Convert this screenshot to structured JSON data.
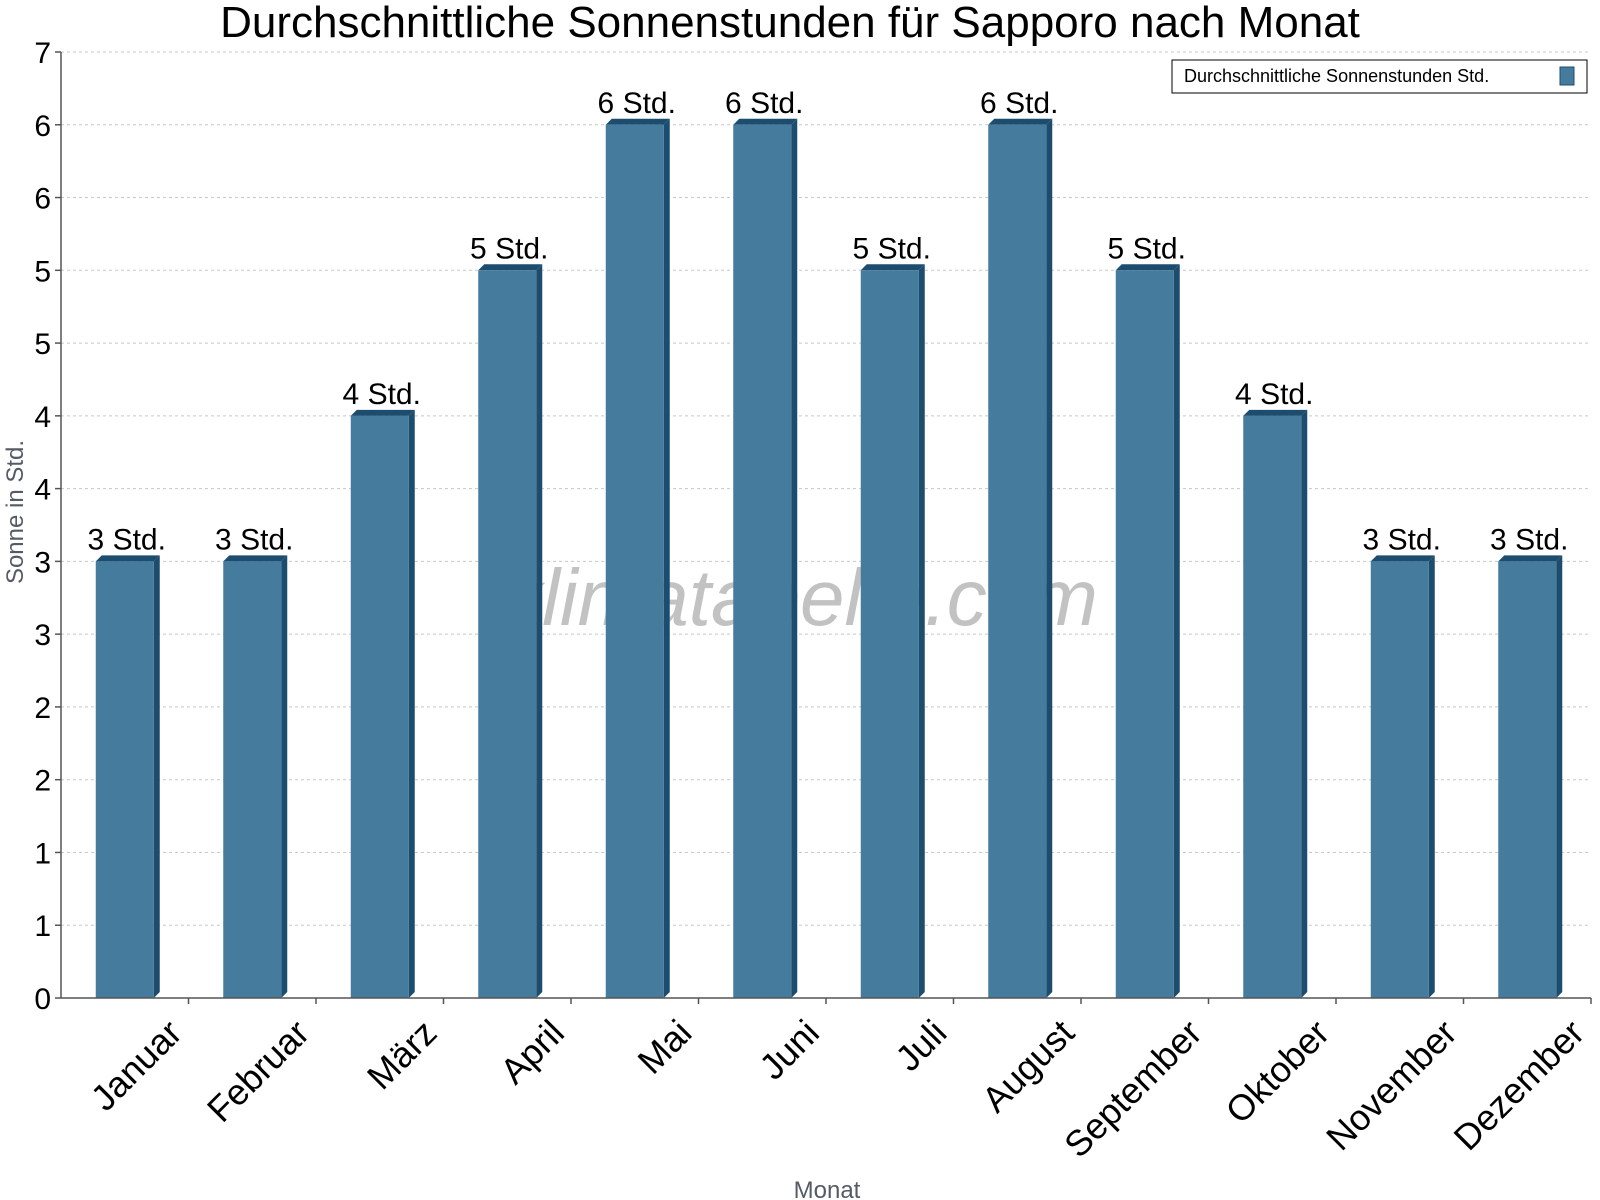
{
  "chart_data": {
    "type": "bar",
    "title": "Durchschnittliche Sonnenstunden für Sapporo nach Monat",
    "xlabel": "Monat",
    "ylabel": "Sonne in Std.",
    "categories": [
      "Januar",
      "Februar",
      "März",
      "April",
      "Mai",
      "Juni",
      "Juli",
      "August",
      "September",
      "Oktober",
      "November",
      "Dezember"
    ],
    "series": [
      {
        "name": "Durchschnittliche Sonnenstunden Std.",
        "values": [
          3,
          3,
          4,
          5,
          6,
          6,
          5,
          6,
          5,
          4,
          3,
          3
        ],
        "labels": [
          "3 Std.",
          "3 Std.",
          "4 Std.",
          "5 Std.",
          "6 Std.",
          "6 Std.",
          "5 Std.",
          "6 Std.",
          "5 Std.",
          "4 Std.",
          "3 Std.",
          "3 Std."
        ]
      }
    ],
    "ylim": [
      0,
      6.5
    ],
    "yticks": [
      {
        "value": 0,
        "label": "0"
      },
      {
        "value": 0.5,
        "label": "1"
      },
      {
        "value": 1,
        "label": "1"
      },
      {
        "value": 1.5,
        "label": "2"
      },
      {
        "value": 2,
        "label": "2"
      },
      {
        "value": 2.5,
        "label": "3"
      },
      {
        "value": 3,
        "label": "3"
      },
      {
        "value": 3.5,
        "label": "4"
      },
      {
        "value": 4,
        "label": "4"
      },
      {
        "value": 4.5,
        "label": "5"
      },
      {
        "value": 5,
        "label": "5"
      },
      {
        "value": 5.5,
        "label": "6"
      },
      {
        "value": 6,
        "label": "6"
      },
      {
        "value": 6.5,
        "label": "7"
      }
    ],
    "grid": true,
    "legend_position": "top-right",
    "watermark": "klimatabelle.com",
    "colors": {
      "bar": "#457b9d",
      "bar_top": "#5f93b3",
      "bar_side": "#1d4d6e",
      "legend_swatch": "#457b9d"
    }
  }
}
